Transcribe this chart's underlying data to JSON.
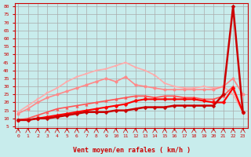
{
  "bg_color": "#c8ecec",
  "grid_color": "#aaaaaa",
  "xlabel": "Vent moyen/en rafales ( km/h )",
  "x_ticks": [
    0,
    1,
    2,
    3,
    4,
    5,
    6,
    7,
    8,
    9,
    10,
    11,
    12,
    13,
    14,
    15,
    16,
    17,
    18,
    19,
    20,
    21,
    22,
    23
  ],
  "y_ticks": [
    5,
    10,
    15,
    20,
    25,
    30,
    35,
    40,
    45,
    50,
    55,
    60,
    65,
    70,
    75,
    80
  ],
  "xlim": [
    -0.3,
    23.5
  ],
  "ylim": [
    4,
    82
  ],
  "line1": {
    "color": "#ff0000",
    "values": [
      9,
      9,
      10,
      11,
      12,
      13,
      14,
      15,
      16,
      17,
      18,
      19,
      21,
      22,
      22,
      22,
      22,
      22,
      22,
      21,
      20,
      20,
      29,
      14
    ],
    "linewidth": 1.5,
    "marker": "D",
    "markersize": 2.5
  },
  "line2": {
    "color": "#ff5555",
    "values": [
      9,
      10,
      12,
      14,
      16,
      17,
      18,
      19,
      20,
      21,
      22,
      23,
      24,
      24,
      23,
      24,
      24,
      23,
      23,
      22,
      22,
      24,
      30,
      14
    ],
    "linewidth": 1.2,
    "marker": "^",
    "markersize": 2.5
  },
  "line3": {
    "color": "#ff8888",
    "values": [
      13,
      16,
      20,
      23,
      25,
      27,
      29,
      31,
      33,
      35,
      33,
      36,
      31,
      30,
      29,
      28,
      28,
      28,
      28,
      28,
      28,
      30,
      35,
      25
    ],
    "linewidth": 1.2,
    "marker": "o",
    "markersize": 2.5
  },
  "line4": {
    "color": "#ffaaaa",
    "values": [
      14,
      18,
      22,
      26,
      29,
      33,
      36,
      38,
      40,
      41,
      43,
      45,
      42,
      40,
      37,
      32,
      30,
      29,
      29,
      30,
      29,
      30,
      25,
      14
    ],
    "linewidth": 1.2,
    "marker": "s",
    "markersize": 2.0
  },
  "line5": {
    "color": "#cc0000",
    "values": [
      9,
      9,
      10,
      10,
      11,
      12,
      13,
      14,
      14,
      14,
      15,
      15,
      16,
      17,
      17,
      17,
      18,
      18,
      18,
      18,
      18,
      25,
      80,
      14
    ],
    "linewidth": 1.8,
    "marker": "D",
    "markersize": 2.5
  }
}
